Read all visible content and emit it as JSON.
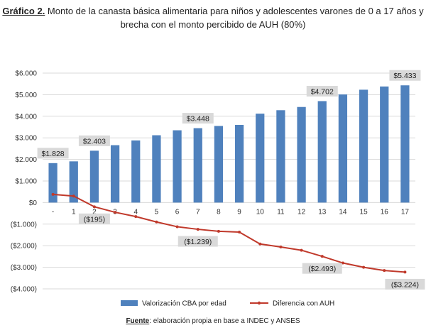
{
  "title": {
    "lead": "Gráfico 2.",
    "line1": " Monto de la canasta básica alimentaria para niños y adolescentes varones de 0 a 17 años y",
    "line2": "brecha con el monto percibido de AUH (80%)"
  },
  "source": {
    "label": "Fuente",
    "text": ": elaboración propia en base a INDEC y ANSES"
  },
  "colors": {
    "bar": "#4f81bd",
    "line": "#c0392b",
    "grid": "#d9d9d9",
    "label_bg": "#d9d9d9"
  },
  "chart_data": {
    "type": "bar",
    "categories": [
      "-",
      "1",
      "2",
      "3",
      "4",
      "5",
      "6",
      "7",
      "8",
      "9",
      "10",
      "11",
      "12",
      "13",
      "14",
      "15",
      "16",
      "17"
    ],
    "ylim": [
      -4000,
      6000
    ],
    "yticks": [
      {
        "value": 6000,
        "label": "$6.000"
      },
      {
        "value": 5000,
        "label": "$5.000"
      },
      {
        "value": 4000,
        "label": "$4.000"
      },
      {
        "value": 3000,
        "label": "$3.000"
      },
      {
        "value": 2000,
        "label": "$2.000"
      },
      {
        "value": 1000,
        "label": "$1.000"
      },
      {
        "value": 0,
        "label": "$0"
      },
      {
        "value": -1000,
        "label": "($1.000)"
      },
      {
        "value": -2000,
        "label": "($2.000)"
      },
      {
        "value": -3000,
        "label": "($3.000)"
      },
      {
        "value": -4000,
        "label": "($4.000)"
      }
    ],
    "series": [
      {
        "name": "Valorización CBA por edad",
        "kind": "bar",
        "values": [
          1828,
          1910,
          2403,
          2660,
          2880,
          3120,
          3350,
          3448,
          3550,
          3600,
          4120,
          4280,
          4430,
          4702,
          5010,
          5230,
          5380,
          5433
        ],
        "labels": [
          {
            "index": 0,
            "text": "$1.828"
          },
          {
            "index": 2,
            "text": "$2.403"
          },
          {
            "index": 7,
            "text": "$3.448"
          },
          {
            "index": 13,
            "text": "$4.702"
          },
          {
            "index": 17,
            "text": "$5.433"
          }
        ]
      },
      {
        "name": "Diferencia con AUH",
        "kind": "line",
        "values": [
          380,
          300,
          -195,
          -450,
          -650,
          -900,
          -1120,
          -1239,
          -1330,
          -1370,
          -1920,
          -2060,
          -2210,
          -2493,
          -2800,
          -3000,
          -3150,
          -3224
        ],
        "labels": [
          {
            "index": 2,
            "text": "($195)"
          },
          {
            "index": 7,
            "text": "($1.239)"
          },
          {
            "index": 13,
            "text": "($2.493)"
          },
          {
            "index": 17,
            "text": "($3.224)"
          }
        ]
      }
    ]
  }
}
